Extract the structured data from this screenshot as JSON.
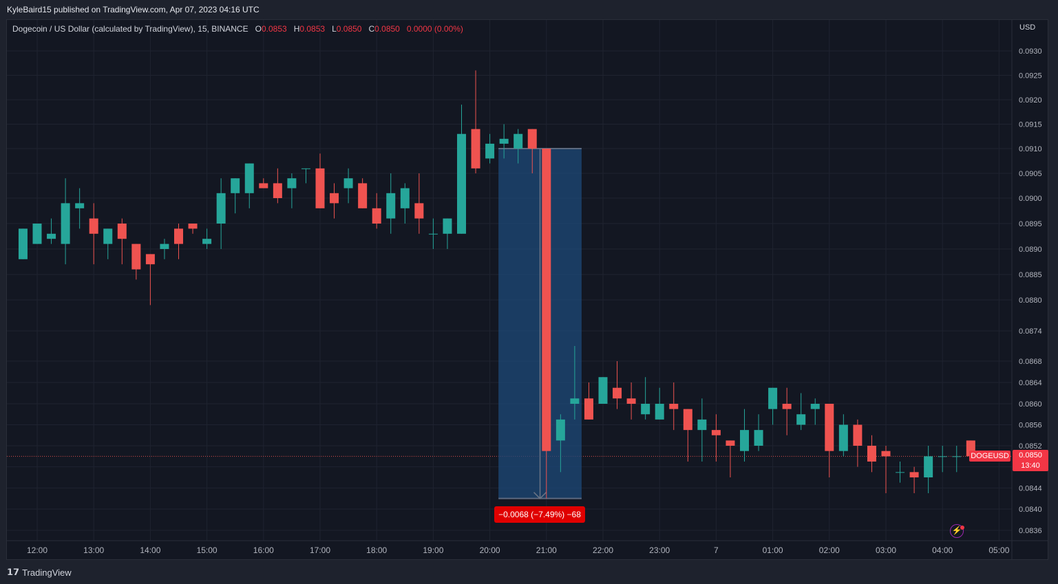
{
  "header": {
    "publisher": "KyleBaird15 published on TradingView.com, Apr 07, 2023 04:16 UTC"
  },
  "legend": {
    "title": "Dogecoin / US Dollar (calculated by TradingView), 15, BINANCE",
    "o_label": "O",
    "o_value": "0.0853",
    "h_label": "H",
    "h_value": "0.0853",
    "l_label": "L",
    "l_value": "0.0850",
    "c_label": "C",
    "c_value": "0.0850",
    "change": "0.0000 (0.00%)"
  },
  "price_axis": {
    "currency": "USD",
    "current_price": "0.0850",
    "countdown": "13:40",
    "symbol": "DOGEUSD"
  },
  "measure": {
    "label": "−0.0068 (−7.49%) −68",
    "from_price": 0.091,
    "to_price": 0.0842,
    "from_time": "20:15",
    "to_time": "21:30"
  },
  "footer": {
    "brand": "TradingView"
  },
  "colors": {
    "up": "#26a69a",
    "down": "#ef5350",
    "background": "#131722",
    "grid": "#1f2330",
    "measure_fill": "#1e4a78",
    "label_red": "#e00000"
  },
  "chart_data": {
    "type": "candlestick",
    "symbol": "DOGEUSD",
    "interval_minutes": 15,
    "x_ticks": [
      "12:00",
      "13:00",
      "14:00",
      "15:00",
      "16:00",
      "17:00",
      "18:00",
      "19:00",
      "20:00",
      "21:00",
      "22:00",
      "23:00",
      "7",
      "01:00",
      "02:00",
      "03:00",
      "04:00",
      "05:00"
    ],
    "y_ticks": [
      "0.0930",
      "0.0925",
      "0.0920",
      "0.0915",
      "0.0910",
      "0.0905",
      "0.0900",
      "0.0895",
      "0.0890",
      "0.0885",
      "0.0880",
      "0.0874",
      "0.0868",
      "0.0864",
      "0.0860",
      "0.0856",
      "0.0852",
      "0.0848",
      "0.0844",
      "0.0840",
      "0.0836"
    ],
    "current_price": 0.085,
    "candles": [
      {
        "t": "11:45",
        "o": 0.0888,
        "h": 0.0894,
        "l": 0.0888,
        "c": 0.0894
      },
      {
        "t": "12:00",
        "o": 0.0891,
        "h": 0.0895,
        "l": 0.0891,
        "c": 0.0895
      },
      {
        "t": "12:15",
        "o": 0.0892,
        "h": 0.0896,
        "l": 0.0891,
        "c": 0.0893
      },
      {
        "t": "12:30",
        "o": 0.0891,
        "h": 0.0904,
        "l": 0.0887,
        "c": 0.0899
      },
      {
        "t": "12:45",
        "o": 0.0898,
        "h": 0.0902,
        "l": 0.0894,
        "c": 0.0899
      },
      {
        "t": "13:00",
        "o": 0.0896,
        "h": 0.0899,
        "l": 0.0887,
        "c": 0.0893
      },
      {
        "t": "13:15",
        "o": 0.0891,
        "h": 0.0894,
        "l": 0.0888,
        "c": 0.0894
      },
      {
        "t": "13:30",
        "o": 0.0895,
        "h": 0.0896,
        "l": 0.0887,
        "c": 0.0892
      },
      {
        "t": "13:45",
        "o": 0.0891,
        "h": 0.0891,
        "l": 0.0884,
        "c": 0.0886
      },
      {
        "t": "14:00",
        "o": 0.0889,
        "h": 0.0889,
        "l": 0.0879,
        "c": 0.0887
      },
      {
        "t": "14:15",
        "o": 0.089,
        "h": 0.0892,
        "l": 0.0888,
        "c": 0.0891
      },
      {
        "t": "14:30",
        "o": 0.0894,
        "h": 0.0895,
        "l": 0.0888,
        "c": 0.0891
      },
      {
        "t": "14:45",
        "o": 0.0895,
        "h": 0.0895,
        "l": 0.0893,
        "c": 0.0894
      },
      {
        "t": "15:00",
        "o": 0.0891,
        "h": 0.0894,
        "l": 0.089,
        "c": 0.0892
      },
      {
        "t": "15:15",
        "o": 0.0895,
        "h": 0.0904,
        "l": 0.089,
        "c": 0.0901
      },
      {
        "t": "15:30",
        "o": 0.0901,
        "h": 0.0904,
        "l": 0.0897,
        "c": 0.0904
      },
      {
        "t": "15:45",
        "o": 0.0901,
        "h": 0.0907,
        "l": 0.0898,
        "c": 0.0907
      },
      {
        "t": "16:00",
        "o": 0.0903,
        "h": 0.0904,
        "l": 0.0902,
        "c": 0.0902
      },
      {
        "t": "16:15",
        "o": 0.0903,
        "h": 0.0906,
        "l": 0.0899,
        "c": 0.09
      },
      {
        "t": "16:30",
        "o": 0.0902,
        "h": 0.0905,
        "l": 0.0898,
        "c": 0.0904
      },
      {
        "t": "16:45",
        "o": 0.0906,
        "h": 0.0906,
        "l": 0.0903,
        "c": 0.0906
      },
      {
        "t": "17:00",
        "o": 0.0906,
        "h": 0.0909,
        "l": 0.0898,
        "c": 0.0898
      },
      {
        "t": "17:15",
        "o": 0.0901,
        "h": 0.0903,
        "l": 0.0896,
        "c": 0.0899
      },
      {
        "t": "17:30",
        "o": 0.0902,
        "h": 0.0906,
        "l": 0.0899,
        "c": 0.0904
      },
      {
        "t": "17:45",
        "o": 0.0903,
        "h": 0.0904,
        "l": 0.0898,
        "c": 0.0898
      },
      {
        "t": "18:00",
        "o": 0.0898,
        "h": 0.0901,
        "l": 0.0894,
        "c": 0.0895
      },
      {
        "t": "18:15",
        "o": 0.0896,
        "h": 0.0905,
        "l": 0.0893,
        "c": 0.0901
      },
      {
        "t": "18:30",
        "o": 0.0898,
        "h": 0.0903,
        "l": 0.0895,
        "c": 0.0902
      },
      {
        "t": "18:45",
        "o": 0.0899,
        "h": 0.0905,
        "l": 0.0893,
        "c": 0.0896
      },
      {
        "t": "19:00",
        "o": 0.0893,
        "h": 0.0896,
        "l": 0.089,
        "c": 0.0893
      },
      {
        "t": "19:15",
        "o": 0.0893,
        "h": 0.0896,
        "l": 0.089,
        "c": 0.0896
      },
      {
        "t": "19:30",
        "o": 0.0893,
        "h": 0.0919,
        "l": 0.0893,
        "c": 0.0913
      },
      {
        "t": "19:45",
        "o": 0.0914,
        "h": 0.0926,
        "l": 0.0905,
        "c": 0.0906
      },
      {
        "t": "20:00",
        "o": 0.0908,
        "h": 0.0913,
        "l": 0.0907,
        "c": 0.0911
      },
      {
        "t": "20:15",
        "o": 0.0911,
        "h": 0.0915,
        "l": 0.0908,
        "c": 0.0912
      },
      {
        "t": "20:30",
        "o": 0.091,
        "h": 0.0914,
        "l": 0.0907,
        "c": 0.0913
      },
      {
        "t": "20:45",
        "o": 0.0914,
        "h": 0.0914,
        "l": 0.0905,
        "c": 0.091
      },
      {
        "t": "21:00",
        "o": 0.091,
        "h": 0.091,
        "l": 0.0842,
        "c": 0.0851
      },
      {
        "t": "21:15",
        "o": 0.0853,
        "h": 0.0858,
        "l": 0.0847,
        "c": 0.0857
      },
      {
        "t": "21:30",
        "o": 0.086,
        "h": 0.0871,
        "l": 0.0857,
        "c": 0.0861
      },
      {
        "t": "21:45",
        "o": 0.0861,
        "h": 0.0864,
        "l": 0.0857,
        "c": 0.0857
      },
      {
        "t": "22:00",
        "o": 0.086,
        "h": 0.0865,
        "l": 0.086,
        "c": 0.0865
      },
      {
        "t": "22:15",
        "o": 0.0863,
        "h": 0.0868,
        "l": 0.0859,
        "c": 0.0861
      },
      {
        "t": "22:30",
        "o": 0.0861,
        "h": 0.0864,
        "l": 0.0857,
        "c": 0.086
      },
      {
        "t": "22:45",
        "o": 0.0858,
        "h": 0.0865,
        "l": 0.0857,
        "c": 0.086
      },
      {
        "t": "23:00",
        "o": 0.0857,
        "h": 0.0863,
        "l": 0.0857,
        "c": 0.086
      },
      {
        "t": "23:15",
        "o": 0.086,
        "h": 0.0864,
        "l": 0.0855,
        "c": 0.0859
      },
      {
        "t": "23:30",
        "o": 0.0859,
        "h": 0.0859,
        "l": 0.0849,
        "c": 0.0855
      },
      {
        "t": "23:45",
        "o": 0.0855,
        "h": 0.0861,
        "l": 0.0849,
        "c": 0.0857
      },
      {
        "t": "00:00",
        "o": 0.0855,
        "h": 0.0858,
        "l": 0.0849,
        "c": 0.0854
      },
      {
        "t": "00:15",
        "o": 0.0853,
        "h": 0.0853,
        "l": 0.0846,
        "c": 0.0852
      },
      {
        "t": "00:30",
        "o": 0.0851,
        "h": 0.0859,
        "l": 0.0849,
        "c": 0.0855
      },
      {
        "t": "00:45",
        "o": 0.0852,
        "h": 0.0858,
        "l": 0.0851,
        "c": 0.0855
      },
      {
        "t": "01:00",
        "o": 0.0859,
        "h": 0.0863,
        "l": 0.0856,
        "c": 0.0863
      },
      {
        "t": "01:15",
        "o": 0.086,
        "h": 0.0863,
        "l": 0.0854,
        "c": 0.0859
      },
      {
        "t": "01:30",
        "o": 0.0856,
        "h": 0.0862,
        "l": 0.0855,
        "c": 0.0858
      },
      {
        "t": "01:45",
        "o": 0.0859,
        "h": 0.0861,
        "l": 0.0856,
        "c": 0.086
      },
      {
        "t": "02:00",
        "o": 0.086,
        "h": 0.086,
        "l": 0.0846,
        "c": 0.0851
      },
      {
        "t": "02:15",
        "o": 0.0851,
        "h": 0.0858,
        "l": 0.085,
        "c": 0.0856
      },
      {
        "t": "02:30",
        "o": 0.0856,
        "h": 0.0857,
        "l": 0.0848,
        "c": 0.0852
      },
      {
        "t": "02:45",
        "o": 0.0852,
        "h": 0.0854,
        "l": 0.0847,
        "c": 0.0849
      },
      {
        "t": "03:00",
        "o": 0.0851,
        "h": 0.0852,
        "l": 0.0843,
        "c": 0.085
      },
      {
        "t": "03:15",
        "o": 0.0847,
        "h": 0.0849,
        "l": 0.0845,
        "c": 0.0847
      },
      {
        "t": "03:30",
        "o": 0.0847,
        "h": 0.0848,
        "l": 0.0843,
        "c": 0.0846
      },
      {
        "t": "03:45",
        "o": 0.0846,
        "h": 0.0852,
        "l": 0.0843,
        "c": 0.085
      },
      {
        "t": "04:00",
        "o": 0.085,
        "h": 0.0852,
        "l": 0.0847,
        "c": 0.085
      },
      {
        "t": "04:15",
        "o": 0.085,
        "h": 0.0852,
        "l": 0.0847,
        "c": 0.085
      },
      {
        "t": "04:30",
        "o": 0.0853,
        "h": 0.0853,
        "l": 0.085,
        "c": 0.085
      }
    ]
  }
}
